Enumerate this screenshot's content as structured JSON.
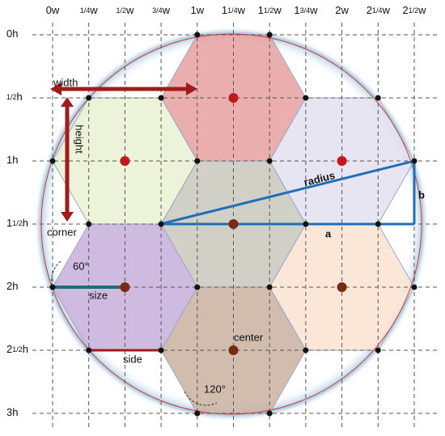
{
  "columns": [
    {
      "int": "0",
      "unit": "w"
    },
    {
      "frac": "1/4",
      "unit": "w"
    },
    {
      "frac": "1/2",
      "unit": "w"
    },
    {
      "frac": "3/4",
      "unit": "w"
    },
    {
      "int": "1",
      "unit": "w"
    },
    {
      "int": "1",
      "frac": "1/4",
      "unit": "w"
    },
    {
      "int": "1",
      "frac": "1/2",
      "unit": "w"
    },
    {
      "int": "1",
      "frac": "3/4",
      "unit": "w"
    },
    {
      "int": "2",
      "unit": "w"
    },
    {
      "int": "2",
      "frac": "1/4",
      "unit": "w"
    },
    {
      "int": "2",
      "frac": "1/2",
      "unit": "w"
    }
  ],
  "rows": [
    {
      "int": "0",
      "unit": "h"
    },
    {
      "frac": "1/2",
      "unit": "h"
    },
    {
      "int": "1",
      "unit": "h"
    },
    {
      "int": "1",
      "frac": "1/2",
      "unit": "h"
    },
    {
      "int": "2",
      "unit": "h"
    },
    {
      "int": "2",
      "frac": "1/2",
      "unit": "h"
    },
    {
      "int": "3",
      "unit": "h"
    }
  ],
  "annotations": {
    "width": "width",
    "height": "height",
    "corner": "corner",
    "angle60": "60°",
    "size": "size",
    "side": "side",
    "center": "center",
    "angle120": "120°",
    "radius": "radius",
    "a": "a",
    "b": "b"
  }
}
